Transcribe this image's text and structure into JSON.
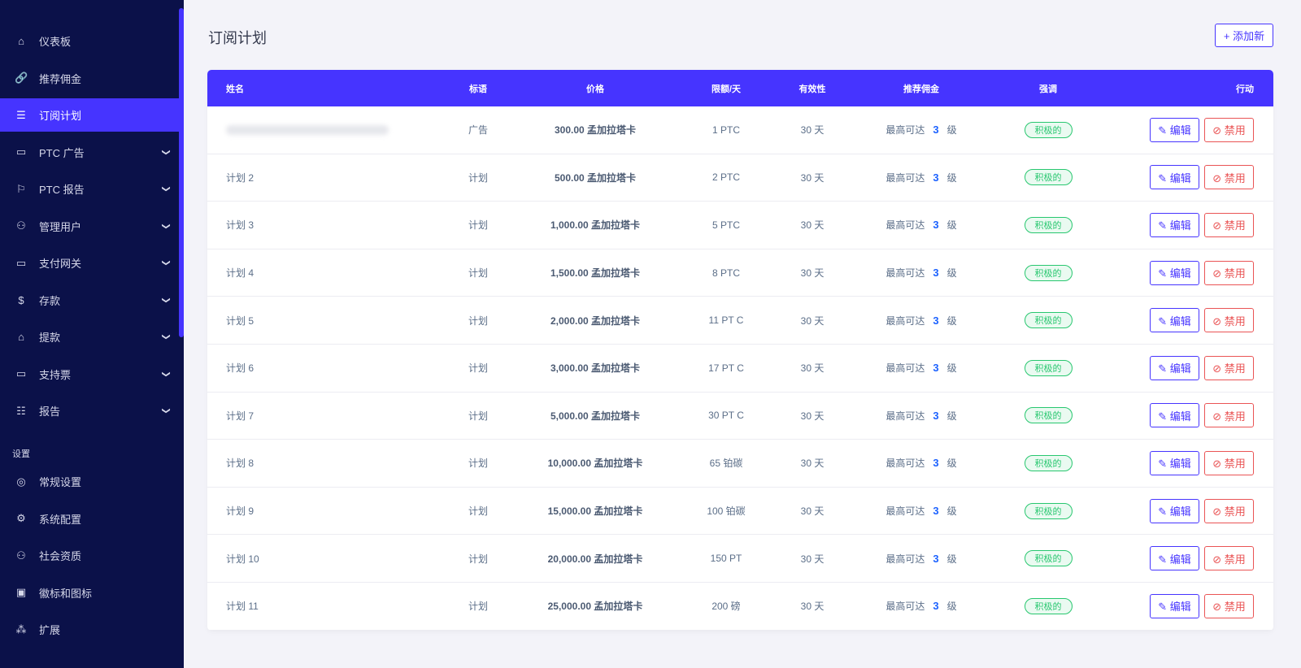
{
  "sidebar": {
    "items": [
      {
        "label": "仪表板",
        "icon": "home-icon",
        "glyph": "⌂",
        "chev": false
      },
      {
        "label": "推荐佣金",
        "icon": "link-icon",
        "glyph": "🔗",
        "chev": false
      },
      {
        "label": "订阅计划",
        "icon": "list-icon",
        "glyph": "☰",
        "chev": false,
        "active": true
      },
      {
        "label": "PTC 广告",
        "icon": "ad-icon",
        "glyph": "▭",
        "chev": true
      },
      {
        "label": "PTC 报告",
        "icon": "flag-icon",
        "glyph": "⚐",
        "chev": true
      },
      {
        "label": "管理用户",
        "icon": "users-icon",
        "glyph": "⚇",
        "chev": true
      },
      {
        "label": "支付网关",
        "icon": "credit-card-icon",
        "glyph": "▭",
        "chev": true
      },
      {
        "label": "存款",
        "icon": "invoice-dollar-icon",
        "glyph": "$",
        "chev": true
      },
      {
        "label": "提款",
        "icon": "bank-icon",
        "glyph": "⌂",
        "chev": true
      },
      {
        "label": "支持票",
        "icon": "ticket-icon",
        "glyph": "▭",
        "chev": true
      },
      {
        "label": "报告",
        "icon": "list-ul-icon",
        "glyph": "☷",
        "chev": true
      }
    ],
    "section": "设置",
    "settings": [
      {
        "label": "常规设置",
        "icon": "life-ring-icon",
        "glyph": "◎"
      },
      {
        "label": "系统配置",
        "icon": "gear-icon",
        "glyph": "⚙"
      },
      {
        "label": "社会资质",
        "icon": "user-cog-icon",
        "glyph": "⚇"
      },
      {
        "label": "徽标和图标",
        "icon": "image-icon",
        "glyph": "▣"
      },
      {
        "label": "扩展",
        "icon": "cubes-icon",
        "glyph": "⁂"
      }
    ]
  },
  "page": {
    "title": "订阅计划",
    "add_label": "+ 添加新"
  },
  "table": {
    "headers": [
      "姓名",
      "标语",
      "价格",
      "限额/天",
      "有效性",
      "推荐佣金",
      "强调",
      "行动"
    ],
    "commission_prefix": "最高可达",
    "commission_level": "3",
    "commission_suffix": "级",
    "status": "积极的",
    "edit_label": "✎ 编辑",
    "disable_label": "⊘ 禁用",
    "rows": [
      {
        "name": "",
        "slogan": "广告",
        "price": "300.00 孟加拉塔卡",
        "limit": "1 PTC",
        "validity": "30 天"
      },
      {
        "name": "计划 2",
        "slogan": "计划",
        "price": "500.00 孟加拉塔卡",
        "limit": "2 PTC",
        "validity": "30 天"
      },
      {
        "name": "计划 3",
        "slogan": "计划",
        "price": "1,000.00 孟加拉塔卡",
        "limit": "5 PTC",
        "validity": "30 天"
      },
      {
        "name": "计划 4",
        "slogan": "计划",
        "price": "1,500.00 孟加拉塔卡",
        "limit": "8 PTC",
        "validity": "30 天"
      },
      {
        "name": "计划 5",
        "slogan": "计划",
        "price": "2,000.00 孟加拉塔卡",
        "limit": "11 PT C",
        "validity": "30 天"
      },
      {
        "name": "计划 6",
        "slogan": "计划",
        "price": "3,000.00 孟加拉塔卡",
        "limit": "17 PT C",
        "validity": "30 天"
      },
      {
        "name": "计划 7",
        "slogan": "计划",
        "price": "5,000.00 孟加拉塔卡",
        "limit": "30 PT C",
        "validity": "30 天"
      },
      {
        "name": "计划 8",
        "slogan": "计划",
        "price": "10,000.00 孟加拉塔卡",
        "limit": "65 铂碳",
        "validity": "30 天"
      },
      {
        "name": "计划 9",
        "slogan": "计划",
        "price": "15,000.00 孟加拉塔卡",
        "limit": "100 铂碳",
        "validity": "30 天"
      },
      {
        "name": "计划 10",
        "slogan": "计划",
        "price": "20,000.00 孟加拉塔卡",
        "limit": "150 PT",
        "validity": "30 天"
      },
      {
        "name": "计划 11",
        "slogan": "计划",
        "price": "25,000.00 孟加拉塔卡",
        "limit": "200 磅",
        "validity": "30 天"
      }
    ]
  },
  "colors": {
    "sidebar": "#0b1149",
    "accent": "#4634ff",
    "success": "#28c76f",
    "danger": "#ea5455"
  }
}
